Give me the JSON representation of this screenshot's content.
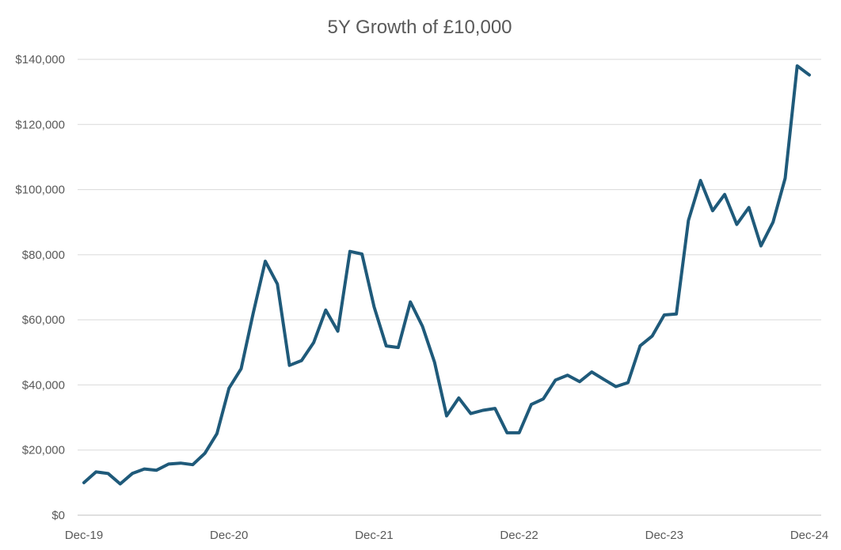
{
  "chart_data": {
    "type": "line",
    "title": "5Y Growth of £10,000",
    "xlabel": "",
    "ylabel": "",
    "ylim": [
      0,
      140000
    ],
    "grid": true,
    "legend": "none",
    "x_tick_labels": [
      "Dec-19",
      "Dec-20",
      "Dec-21",
      "Dec-22",
      "Dec-23",
      "Dec-24"
    ],
    "y_tick_labels": [
      "$0",
      "$20,000",
      "$40,000",
      "$60,000",
      "$80,000",
      "$100,000",
      "$120,000",
      "$140,000"
    ],
    "y_ticks": [
      0,
      20000,
      40000,
      60000,
      80000,
      100000,
      120000,
      140000
    ],
    "x_start": "Dec-19",
    "x_end": "Dec-24",
    "colors": {
      "line": "#1f5a7a"
    },
    "series": [
      {
        "values": [
          10000,
          13300,
          12800,
          9600,
          12800,
          14200,
          13800,
          15700,
          16000,
          15500,
          19000,
          25000,
          39000,
          45000,
          62000,
          78000,
          71000,
          46000,
          47500,
          53000,
          63000,
          56500,
          81000,
          80200,
          64000,
          52000,
          51500,
          65500,
          58000,
          47000,
          30500,
          36000,
          31200,
          32200,
          32800,
          25300,
          25300,
          34000,
          35700,
          41500,
          43000,
          41000,
          44000,
          41700,
          39500,
          40700,
          52000,
          55000,
          61500,
          61800,
          90500,
          102800,
          93500,
          98500,
          89300,
          94500,
          82700,
          90000,
          103500,
          138000,
          135200
        ]
      }
    ]
  }
}
